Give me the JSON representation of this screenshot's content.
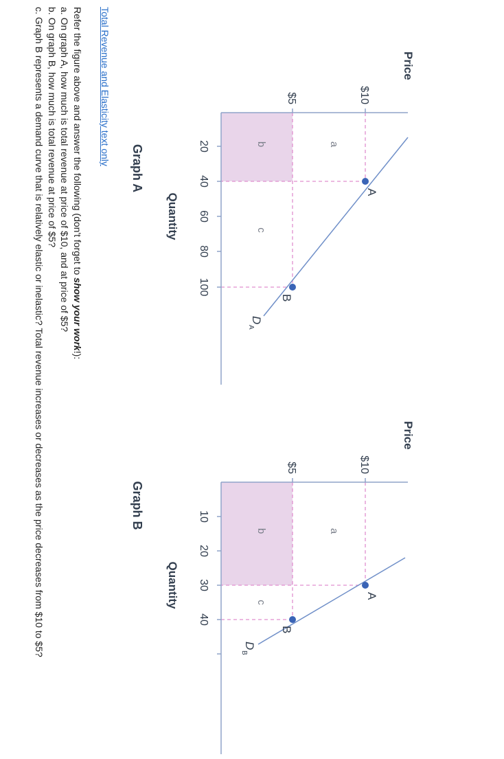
{
  "graph_a": {
    "title": "Graph A",
    "y_axis_label": "Price",
    "x_axis_label": "Quantity",
    "y_ticks": [
      "$10",
      "$5"
    ],
    "x_ticks": [
      "20",
      "40",
      "60",
      "80",
      "100"
    ],
    "regions": [
      "a",
      "b",
      "c"
    ],
    "points": [
      "A",
      "B"
    ],
    "curve_label": "D",
    "curve_sub": "A",
    "shaded_color": "#e9d5ea",
    "line_color": "#6f8fc8",
    "point_color": "#3a64b6",
    "dash_color": "#e08fcf"
  },
  "graph_b": {
    "title": "Graph B",
    "y_axis_label": "Price",
    "x_axis_label": "Quantity",
    "y_ticks": [
      "$10",
      "$5"
    ],
    "x_ticks": [
      "10",
      "20",
      "30",
      "40"
    ],
    "regions": [
      "a",
      "b",
      "c"
    ],
    "points": [
      "A",
      "B"
    ],
    "curve_label": "D",
    "curve_sub": "B",
    "shaded_color": "#e9d5ea",
    "line_color": "#6f8fc8",
    "point_color": "#3a64b6",
    "dash_color": "#e08fcf"
  },
  "text": {
    "link": "Total Revenue and Elasticity text only",
    "intro_pre": "Refer the figure above and answer the following (don't forget to ",
    "intro_bold": "show your work",
    "intro_post": "!):",
    "qa": "a. On graph A, how much is total revenue at price of $10, and at price of $5?",
    "qb": "b. On graph B, how much is total revenue at price of $5?",
    "qc": "c. Graph B represents a demand curve that is relatively elastic or inelastic? Total revenue increases or decreases as the price decreases from $10 to $5?"
  }
}
